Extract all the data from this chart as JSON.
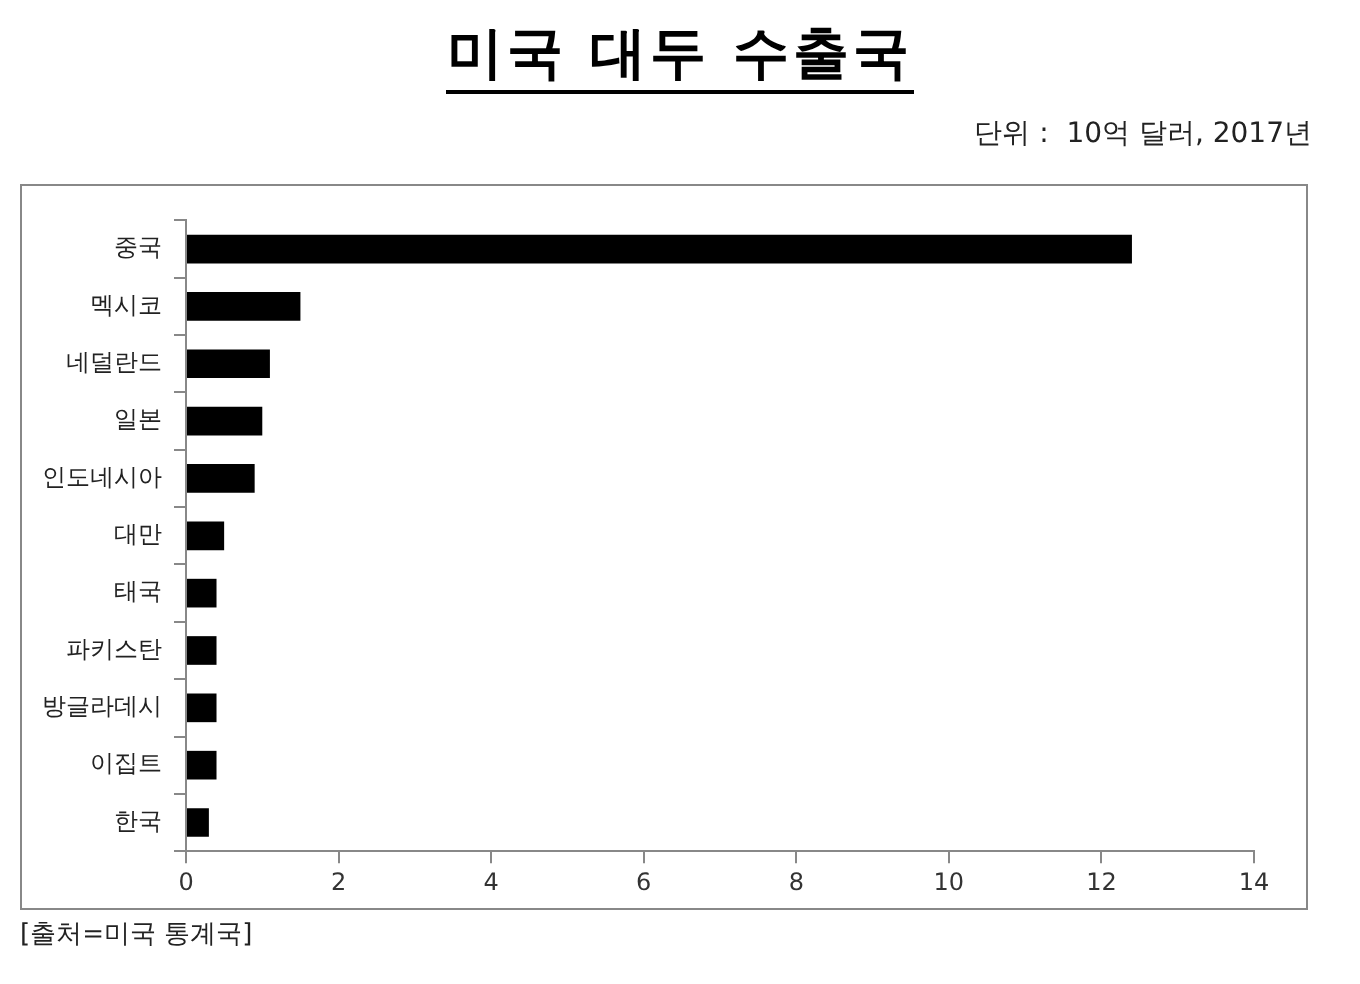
{
  "chart_data": {
    "type": "bar",
    "orientation": "horizontal",
    "title": "미국 대두 수출국",
    "subtitle": "단위 :  10억 달러, 2017년",
    "categories": [
      "중국",
      "멕시코",
      "네덜란드",
      "일본",
      "인도네시아",
      "대만",
      "태국",
      "파키스탄",
      "방글라데시",
      "이집트",
      "한국"
    ],
    "values": [
      12.4,
      1.5,
      1.1,
      1.0,
      0.9,
      0.5,
      0.4,
      0.4,
      0.4,
      0.4,
      0.3
    ],
    "color": "#000000",
    "xlim": [
      0,
      14
    ],
    "xticks": [
      0,
      2,
      4,
      6,
      8,
      10,
      12,
      14
    ],
    "grid": false,
    "legend": false,
    "annotations": [
      "[출처=미국 통계국]"
    ]
  }
}
